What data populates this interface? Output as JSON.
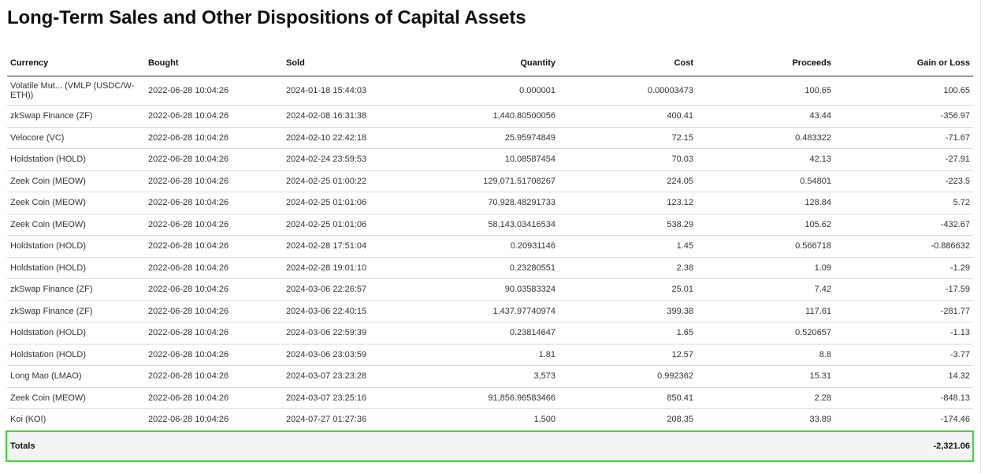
{
  "title": "Long-Term Sales and Other Dispositions of Capital Assets",
  "columns": {
    "currency": "Currency",
    "bought": "Bought",
    "sold": "Sold",
    "quantity": "Quantity",
    "cost": "Cost",
    "proceeds": "Proceeds",
    "gain": "Gain or Loss"
  },
  "rows": [
    {
      "currency": "Volatile Mut... (VMLP (USDC/W-ETH))",
      "bought": "2022-06-28 10:04:26",
      "sold": "2024-01-18 15:44:03",
      "quantity": "0.000001",
      "cost": "0.00003473",
      "proceeds": "100.65",
      "gain": "100.65"
    },
    {
      "currency": "zkSwap Finance (ZF)",
      "bought": "2022-06-28 10:04:26",
      "sold": "2024-02-08 16:31:38",
      "quantity": "1,440.80500056",
      "cost": "400.41",
      "proceeds": "43.44",
      "gain": "-356.97"
    },
    {
      "currency": "Velocore (VC)",
      "bought": "2022-06-28 10:04:26",
      "sold": "2024-02-10 22:42:18",
      "quantity": "25.95974849",
      "cost": "72.15",
      "proceeds": "0.483322",
      "gain": "-71.67"
    },
    {
      "currency": "Holdstation (HOLD)",
      "bought": "2022-06-28 10:04:26",
      "sold": "2024-02-24 23:59:53",
      "quantity": "10.08587454",
      "cost": "70.03",
      "proceeds": "42.13",
      "gain": "-27.91"
    },
    {
      "currency": "Zeek Coin (MEOW)",
      "bought": "2022-06-28 10:04:26",
      "sold": "2024-02-25 01:00:22",
      "quantity": "129,071.51708267",
      "cost": "224.05",
      "proceeds": "0.54801",
      "gain": "-223.5"
    },
    {
      "currency": "Zeek Coin (MEOW)",
      "bought": "2022-06-28 10:04:26",
      "sold": "2024-02-25 01:01:06",
      "quantity": "70,928.48291733",
      "cost": "123.12",
      "proceeds": "128.84",
      "gain": "5.72"
    },
    {
      "currency": "Zeek Coin (MEOW)",
      "bought": "2022-06-28 10:04:26",
      "sold": "2024-02-25 01:01:06",
      "quantity": "58,143.03416534",
      "cost": "538.29",
      "proceeds": "105.62",
      "gain": "-432.67"
    },
    {
      "currency": "Holdstation (HOLD)",
      "bought": "2022-06-28 10:04:26",
      "sold": "2024-02-28 17:51:04",
      "quantity": "0.20931146",
      "cost": "1.45",
      "proceeds": "0.566718",
      "gain": "-0.886632"
    },
    {
      "currency": "Holdstation (HOLD)",
      "bought": "2022-06-28 10:04:26",
      "sold": "2024-02-28 19:01:10",
      "quantity": "0.23280551",
      "cost": "2.38",
      "proceeds": "1.09",
      "gain": "-1.29"
    },
    {
      "currency": "zkSwap Finance (ZF)",
      "bought": "2022-06-28 10:04:26",
      "sold": "2024-03-06 22:26:57",
      "quantity": "90.03583324",
      "cost": "25.01",
      "proceeds": "7.42",
      "gain": "-17.59"
    },
    {
      "currency": "zkSwap Finance (ZF)",
      "bought": "2022-06-28 10:04:26",
      "sold": "2024-03-06 22:40:15",
      "quantity": "1,437.97740974",
      "cost": "399.38",
      "proceeds": "117.61",
      "gain": "-281.77"
    },
    {
      "currency": "Holdstation (HOLD)",
      "bought": "2022-06-28 10:04:26",
      "sold": "2024-03-06 22:59:39",
      "quantity": "0.23814647",
      "cost": "1.65",
      "proceeds": "0.520657",
      "gain": "-1.13"
    },
    {
      "currency": "Holdstation (HOLD)",
      "bought": "2022-06-28 10:04:26",
      "sold": "2024-03-06 23:03:59",
      "quantity": "1.81",
      "cost": "12.57",
      "proceeds": "8.8",
      "gain": "-3.77"
    },
    {
      "currency": "Long Mao (LMAO)",
      "bought": "2022-06-28 10:04:26",
      "sold": "2024-03-07 23:23:28",
      "quantity": "3,573",
      "cost": "0.992362",
      "proceeds": "15.31",
      "gain": "14.32"
    },
    {
      "currency": "Zeek Coin (MEOW)",
      "bought": "2022-06-28 10:04:26",
      "sold": "2024-03-07 23:25:16",
      "quantity": "91,856.96583466",
      "cost": "850.41",
      "proceeds": "2.28",
      "gain": "-848.13"
    },
    {
      "currency": "Koi (KOI)",
      "bought": "2022-06-28 10:04:26",
      "sold": "2024-07-27 01:27:36",
      "quantity": "1,500",
      "cost": "208.35",
      "proceeds": "33.89",
      "gain": "-174.46"
    }
  ],
  "totals": {
    "label": "Totals",
    "gain": "-2,321.06"
  },
  "colors": {
    "highlight_outline": "#33e02a",
    "totals_background": "#f2f3f5"
  }
}
